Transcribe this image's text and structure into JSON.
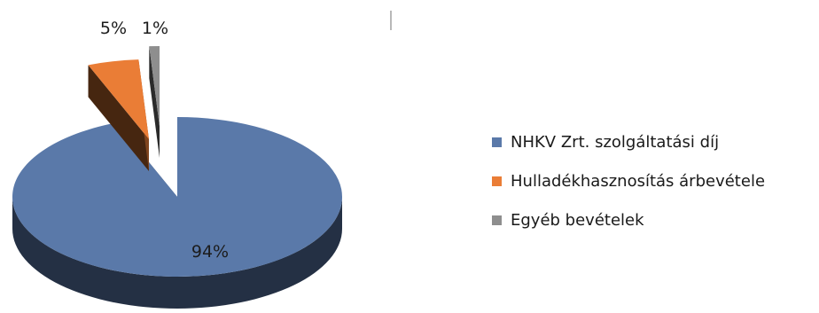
{
  "chart_data": {
    "type": "pie",
    "style": "3d-exploded",
    "title": "",
    "slices": [
      {
        "label": "NHKV Zrt. szolgáltatási díj",
        "value": 94,
        "value_label": "94%",
        "color": "#5a79a9"
      },
      {
        "label": "Hulladékhasznosítás árbevétele",
        "value": 5,
        "value_label": "5%",
        "color": "#ea7d36"
      },
      {
        "label": "Egyéb bevételek",
        "value": 1,
        "value_label": "1%",
        "color": "#8e8e8e"
      }
    ],
    "legend_position": "right"
  }
}
